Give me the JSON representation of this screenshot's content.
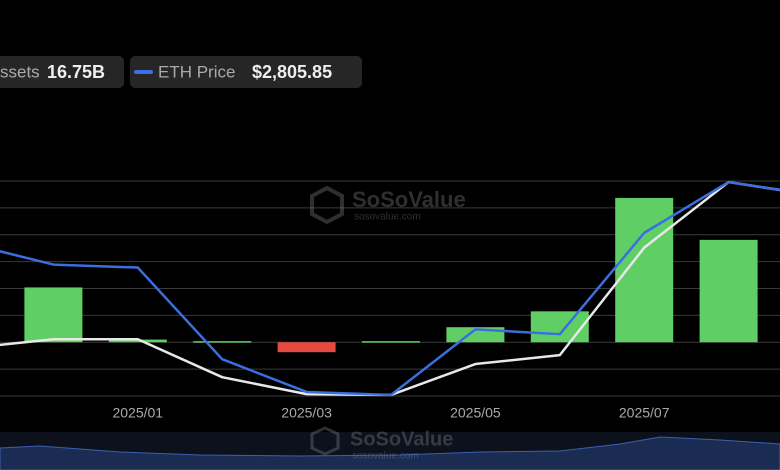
{
  "chart_data": {
    "type": "bar_line",
    "watermark": "SoSoValue",
    "watermark_sub": "sosovalue.com",
    "categories": [
      null,
      null,
      "2025/01",
      null,
      "2025/03",
      null,
      "2025/05",
      null,
      "2025/07",
      null,
      null
    ],
    "ylim": [
      -2,
      6
    ],
    "yticks": [
      -2,
      -1,
      0,
      1,
      2,
      3,
      4,
      5,
      6
    ],
    "grid": true,
    "y2lim": [
      -2,
      6
    ],
    "bars": {
      "color": "#5fcf65",
      "negative_color": "#e5493f",
      "values": [
        null,
        2.04,
        0.1,
        0.04,
        -0.37,
        0.04,
        0.56,
        1.15,
        5.37,
        3.81,
        null
      ]
    },
    "series": [
      {
        "name": "ssets",
        "legend_value": "16.75B",
        "color": "#e8e8e8",
        "axis": "y2",
        "values": [
          -0.22,
          0.11,
          0.11,
          -1.3,
          -1.93,
          -1.96,
          -0.81,
          -0.48,
          3.52,
          5.96,
          5.48
        ]
      },
      {
        "name": "ETH Price",
        "legend_value": "$2,805.85",
        "color": "#3b6fe0",
        "axis": "y2",
        "values": [
          3.67,
          2.89,
          2.78,
          -0.63,
          -1.85,
          -1.96,
          0.48,
          0.3,
          4.07,
          5.96,
          5.48
        ]
      }
    ]
  }
}
